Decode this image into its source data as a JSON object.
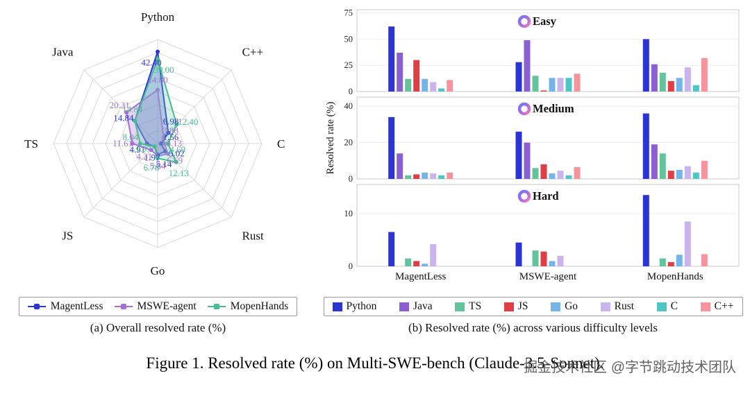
{
  "figure": {
    "caption": "Figure 1. Resolved rate (%) on Multi-SWE-bench (Claude-3.5-Sonnet).",
    "watermark": "掘金技术社区 @字节跳动技术团队",
    "subcaption_a": "(a) Overall resolved rate (%)",
    "subcaption_b": "(b) Resolved rate (%) across various difficulty levels"
  },
  "chart_data": [
    {
      "type": "radar",
      "title": "Overall resolved rate (%)",
      "categories": [
        "Python",
        "C++",
        "C",
        "Rust",
        "Go",
        "JS",
        "TS",
        "Java"
      ],
      "rmax": 48,
      "rings": 8,
      "grid": true,
      "legend_position": "bottom",
      "series": [
        {
          "name": "MagentLess",
          "color": "#2b35d6",
          "fill": "rgba(59,76,224,0.30)",
          "values": [
            42.4,
            6.98,
            1.56,
            5.02,
            5.14,
            1.97,
            4.91,
            14.84
          ]
        },
        {
          "name": "MSWE-agent",
          "color": "#a46fd9",
          "fill": "rgba(178,132,228,0.32)",
          "values": [
            24.8,
            3.88,
            3.13,
            6.69,
            5.84,
            4.21,
            11.61,
            20.31
          ]
        },
        {
          "name": "MopenHands",
          "color": "#44bd92",
          "fill": "rgba(110,205,170,0.28)",
          "values": [
            39.0,
            12.4,
            4.69,
            12.13,
            6.78,
            1.97,
            8.04,
            14.84
          ]
        }
      ]
    },
    {
      "type": "bar",
      "title": "Resolved rate (%) across various difficulty levels",
      "ylabel": "Resolved rate (%)",
      "groups": [
        "MagentLess",
        "MSWE-agent",
        "MopenHands"
      ],
      "languages": [
        {
          "name": "Python",
          "color": "#2b35d6"
        },
        {
          "name": "Java",
          "color": "#8a5fd1"
        },
        {
          "name": "TS",
          "color": "#63c49c"
        },
        {
          "name": "JS",
          "color": "#df3e44"
        },
        {
          "name": "Go",
          "color": "#74b4e8"
        },
        {
          "name": "Rust",
          "color": "#c9b4ee"
        },
        {
          "name": "C",
          "color": "#4ec7c4"
        },
        {
          "name": "C++",
          "color": "#f6939c"
        }
      ],
      "panels": [
        {
          "title": "Easy",
          "ymax": 78,
          "yticks": [
            0,
            25,
            50,
            75
          ],
          "values": [
            [
              62,
              37,
              12,
              30,
              12,
              9,
              3,
              11
            ],
            [
              28,
              49,
              15,
              1,
              13,
              13,
              13,
              17
            ],
            [
              50,
              26,
              18,
              10,
              13,
              23,
              6,
              32
            ]
          ]
        },
        {
          "title": "Medium",
          "ymax": 45,
          "yticks": [
            0,
            20,
            40
          ],
          "values": [
            [
              34,
              14,
              2,
              2.5,
              3.5,
              3,
              2,
              3.5
            ],
            [
              26,
              20,
              6,
              8,
              3,
              4.5,
              2,
              6.5
            ],
            [
              36,
              19,
              14,
              4.5,
              5,
              7,
              3.5,
              10
            ]
          ]
        },
        {
          "title": "Hard",
          "ymax": 15.5,
          "yticks": [
            0,
            10
          ],
          "values": [
            [
              6.5,
              0,
              1.5,
              1,
              0.5,
              4.2,
              0,
              0
            ],
            [
              4.5,
              0,
              3,
              2.8,
              1,
              2,
              0,
              0
            ],
            [
              13.5,
              0,
              1.5,
              0.8,
              2.2,
              8.5,
              0,
              2.3
            ]
          ]
        }
      ]
    }
  ]
}
